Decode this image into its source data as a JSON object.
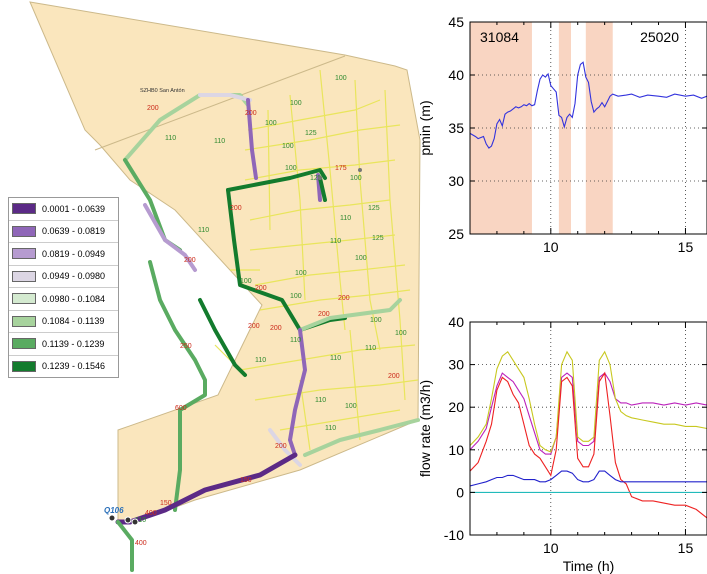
{
  "map": {
    "zone_label": "SZHB0 San Antón",
    "node_label": "Q106",
    "pipe_labels": [
      "100",
      "110",
      "125",
      "150",
      "175",
      "200",
      "250",
      "400",
      "600"
    ],
    "colors": {
      "background_fill": "#fae6bd",
      "background_stroke": "#ccb98a",
      "yellow_pipe": "#e9e55c",
      "label_red": "#cc2a1a",
      "label_green": "#2f8a2f"
    }
  },
  "legend": {
    "items": [
      {
        "label": "0.0001 - 0.0639",
        "color": "#5b2a86"
      },
      {
        "label": "0.0639 - 0.0819",
        "color": "#8f66b8"
      },
      {
        "label": "0.0819 - 0.0949",
        "color": "#b69bd0"
      },
      {
        "label": "0.0949 - 0.0980",
        "color": "#dcd6e4"
      },
      {
        "label": "0.0980 - 0.1084",
        "color": "#d4ead0"
      },
      {
        "label": "0.1084 - 0.1139",
        "color": "#a7d39d"
      },
      {
        "label": "0.1139 - 0.1239",
        "color": "#5aab61"
      },
      {
        "label": "0.1239 - 0.1546",
        "color": "#137b2d"
      }
    ]
  },
  "chart_data": [
    {
      "type": "line",
      "ylabel": "pmin (m)",
      "xlabel": "",
      "xlim": [
        7,
        15.8
      ],
      "ylim": [
        25,
        45
      ],
      "yticks": [
        25,
        30,
        35,
        40,
        45
      ],
      "xticks": [
        10,
        15
      ],
      "grid": true,
      "annotations": [
        "31084",
        "25020"
      ],
      "shaded_intervals": [
        [
          7,
          9.3
        ],
        [
          10.3,
          10.75
        ],
        [
          11.3,
          12.3
        ]
      ],
      "series": [
        {
          "color": "#3333dd",
          "x": [
            7.0,
            7.2,
            7.3,
            7.5,
            7.6,
            7.7,
            7.8,
            7.9,
            8.0,
            8.1,
            8.2,
            8.3,
            8.4,
            8.5,
            8.6,
            8.7,
            8.8,
            8.9,
            9.0,
            9.1,
            9.2,
            9.3,
            9.4,
            9.5,
            9.6,
            9.7,
            9.8,
            9.9,
            10.0,
            10.1,
            10.2,
            10.3,
            10.4,
            10.5,
            10.6,
            10.7,
            10.8,
            10.9,
            11.0,
            11.1,
            11.2,
            11.3,
            11.4,
            11.5,
            11.6,
            11.7,
            11.8,
            11.9,
            12.0,
            12.1,
            12.2,
            12.3,
            12.5,
            12.8,
            13.0,
            13.3,
            13.6,
            14.0,
            14.3,
            14.6,
            15.0,
            15.3,
            15.6,
            15.8
          ],
          "y": [
            34.5,
            34.2,
            34.0,
            34.2,
            33.5,
            33.1,
            33.3,
            34.0,
            35.4,
            35.8,
            35.2,
            36.3,
            36.5,
            36.6,
            36.8,
            37.0,
            36.9,
            37.0,
            37.2,
            37.1,
            37.3,
            37.1,
            37.2,
            38.5,
            39.6,
            40.0,
            39.8,
            40.1,
            39.0,
            38.7,
            38.4,
            36.2,
            36.0,
            35.1,
            36.0,
            36.3,
            36.0,
            37.3,
            40.0,
            41.0,
            41.2,
            39.8,
            39.3,
            37.5,
            36.5,
            36.8,
            37.0,
            37.4,
            37.0,
            37.5,
            38.0,
            38.2,
            38.0,
            38.1,
            38.2,
            37.9,
            38.1,
            38.0,
            37.9,
            38.2,
            38.0,
            38.1,
            37.8,
            38.0
          ]
        }
      ]
    },
    {
      "type": "line",
      "xlabel": "Time (h)",
      "ylabel": "flow rate (m3/h)",
      "xlim": [
        7,
        15.8
      ],
      "ylim": [
        -10,
        40
      ],
      "yticks": [
        -10,
        0,
        10,
        20,
        30,
        40
      ],
      "xticks": [
        10,
        15
      ],
      "grid": true,
      "series": [
        {
          "color": "#bb22bb",
          "x": [
            7.0,
            7.3,
            7.6,
            7.8,
            8.0,
            8.2,
            8.4,
            8.6,
            8.8,
            9.0,
            9.2,
            9.4,
            9.6,
            9.8,
            10.0,
            10.2,
            10.4,
            10.6,
            10.8,
            11.0,
            11.2,
            11.4,
            11.6,
            11.8,
            12.0,
            12.2,
            12.4,
            12.6,
            12.8,
            13.0,
            13.4,
            13.8,
            14.2,
            14.6,
            15.0,
            15.4,
            15.8
          ],
          "y": [
            10,
            12,
            15,
            20,
            25,
            28,
            27,
            26,
            24,
            22,
            18,
            14,
            10,
            9,
            9,
            13,
            27,
            28,
            27,
            12,
            11,
            11,
            12,
            27,
            28,
            26,
            22,
            21,
            21,
            20.5,
            21,
            21,
            20.5,
            21,
            20.5,
            21,
            20.5
          ]
        },
        {
          "color": "#c8c820",
          "x": [
            7.0,
            7.3,
            7.6,
            7.8,
            8.0,
            8.2,
            8.4,
            8.6,
            8.8,
            9.0,
            9.2,
            9.4,
            9.6,
            9.8,
            10.0,
            10.2,
            10.4,
            10.6,
            10.8,
            11.0,
            11.2,
            11.4,
            11.6,
            11.8,
            12.0,
            12.2,
            12.4,
            12.6,
            12.8,
            13.0,
            13.4,
            13.8,
            14.2,
            14.6,
            15.0,
            15.4,
            15.8
          ],
          "y": [
            11,
            13,
            16,
            22,
            29,
            32,
            33,
            31,
            29,
            27,
            22,
            16,
            11,
            10,
            9.5,
            13,
            30,
            33,
            31,
            13,
            12,
            12,
            13,
            31,
            33,
            30,
            22,
            19,
            18,
            17.5,
            17,
            16.5,
            16,
            16,
            15.5,
            15.5,
            15
          ]
        },
        {
          "color": "#ee2222",
          "x": [
            7.0,
            7.3,
            7.6,
            7.8,
            8.0,
            8.2,
            8.4,
            8.6,
            8.8,
            9.0,
            9.2,
            9.4,
            9.6,
            9.8,
            10.0,
            10.2,
            10.4,
            10.6,
            10.8,
            11.0,
            11.2,
            11.4,
            11.6,
            11.8,
            12.0,
            12.2,
            12.4,
            12.6,
            12.8,
            13.0,
            13.4,
            13.8,
            14.2,
            14.6,
            15.0,
            15.4,
            15.8
          ],
          "y": [
            5,
            7,
            12,
            16,
            24,
            27,
            26,
            23,
            21,
            16,
            11,
            9,
            8,
            6,
            4,
            10,
            26,
            27,
            25,
            8,
            6,
            6,
            9,
            26,
            28,
            18,
            7,
            3,
            2,
            -1,
            -2,
            -2,
            -2.5,
            -3,
            -3,
            -4,
            -6
          ]
        },
        {
          "color": "#2222cc",
          "x": [
            7.0,
            7.3,
            7.6,
            7.8,
            8.0,
            8.2,
            8.4,
            8.6,
            8.8,
            9.0,
            9.2,
            9.4,
            9.6,
            9.8,
            10.0,
            10.2,
            10.4,
            10.6,
            10.8,
            11.0,
            11.2,
            11.4,
            11.6,
            11.8,
            12.0,
            12.2,
            12.4,
            12.6,
            12.8,
            13.0,
            13.4,
            13.8,
            14.2,
            14.6,
            15.0,
            15.4,
            15.8
          ],
          "y": [
            1.5,
            2,
            2.5,
            3,
            3.5,
            3.5,
            4,
            4,
            3.5,
            3,
            3,
            3,
            2.5,
            2.5,
            3,
            4,
            5,
            5,
            4.5,
            3,
            2.5,
            2.5,
            3,
            5,
            5,
            4,
            3,
            2.5,
            2.5,
            2.5,
            2.5,
            2.5,
            2.5,
            2.5,
            2.5,
            2.5,
            2.5
          ]
        },
        {
          "color": "#22bbbb",
          "x": [
            7.0,
            15.8
          ],
          "y": [
            0,
            0
          ]
        }
      ]
    }
  ]
}
